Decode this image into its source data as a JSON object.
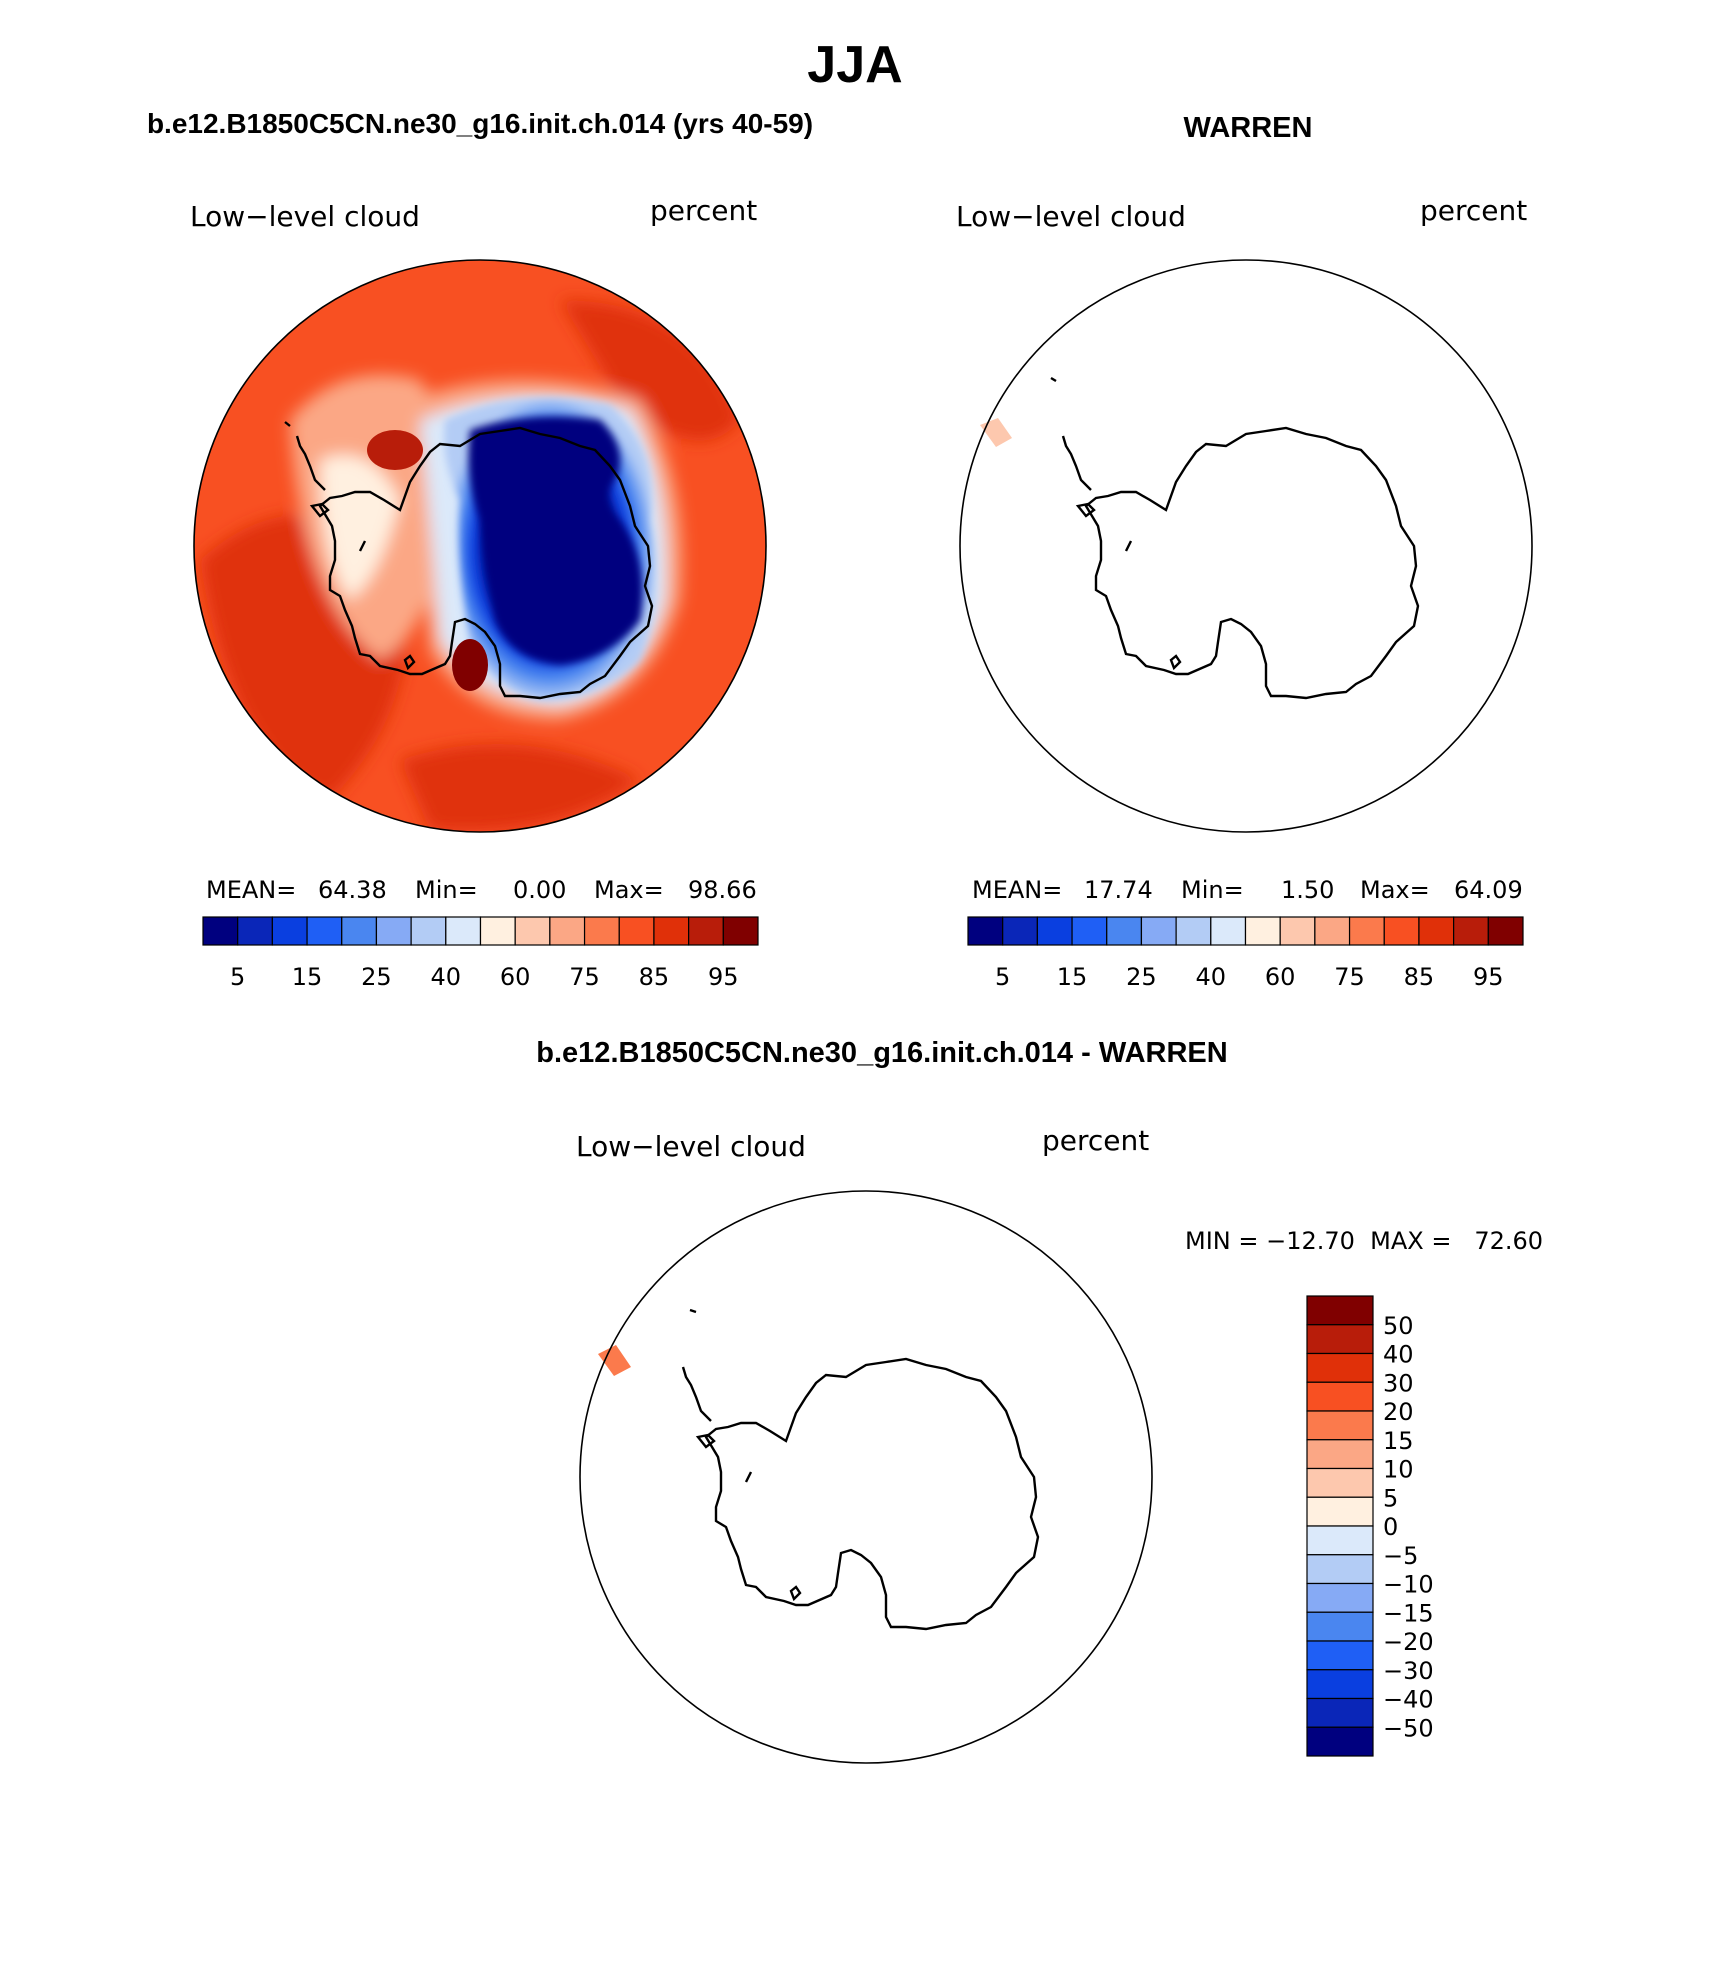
{
  "page_title": "JJA",
  "panels": [
    {
      "id": "model",
      "heading": "b.e12.B1850C5CN.ne30_g16.init.ch.014 (yrs 40-59)",
      "variable": "Low−level cloud",
      "units": "percent",
      "stats": {
        "mean_label": "MEAN=",
        "mean": "64.38",
        "min_label": "Min=",
        "min": "0.00",
        "max_label": "Max=",
        "max": "98.66"
      },
      "field": "full"
    },
    {
      "id": "obs",
      "heading": "WARREN",
      "variable": "Low−level cloud",
      "units": "percent",
      "stats": {
        "mean_label": "MEAN=",
        "mean": "17.74",
        "min_label": "Min=",
        "min": "1.50",
        "max_label": "Max=",
        "max": "64.09"
      },
      "field": "sparse"
    }
  ],
  "abs_colorbar": {
    "colors": [
      "#00007f",
      "#0a26b8",
      "#0a3fe0",
      "#1f5ff5",
      "#4a86f0",
      "#86aaf5",
      "#b3ccf5",
      "#dbe9fa",
      "#fff0e0",
      "#fdc8ae",
      "#fba785",
      "#fb7a4c",
      "#f85022",
      "#e03009",
      "#b81d0a",
      "#800000"
    ],
    "tick_labels": [
      "5",
      "15",
      "25",
      "40",
      "60",
      "75",
      "85",
      "95"
    ]
  },
  "diff_panel": {
    "heading": "b.e12.B1850C5CN.ne30_g16.init.ch.014 - WARREN",
    "variable": "Low−level cloud",
    "units": "percent",
    "minmax_text": "MIN = −12.70  MAX =   72.60",
    "colorbar": {
      "colors_top_to_bottom": [
        "#800000",
        "#b81d0a",
        "#e03009",
        "#f85022",
        "#fb7a4c",
        "#fba785",
        "#fdc8ae",
        "#fff0e0",
        "#dbe9fa",
        "#b3ccf5",
        "#86aaf5",
        "#4a86f0",
        "#1f5ff5",
        "#0a3fe0",
        "#0a26b8",
        "#00007f"
      ],
      "tick_labels": [
        "50",
        "40",
        "30",
        "20",
        "15",
        "10",
        "5",
        "0",
        "−5",
        "−10",
        "−15",
        "−20",
        "−30",
        "−40",
        "−50"
      ]
    }
  }
}
